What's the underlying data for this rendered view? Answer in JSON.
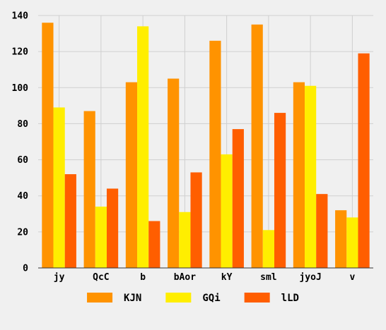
{
  "chart_data": {
    "type": "bar",
    "categories": [
      "jy",
      "QcC",
      "b",
      "bAor",
      "kY",
      "sml",
      "jyoJ",
      "v"
    ],
    "series": [
      {
        "name": "KJN",
        "color": "#ff9300",
        "values": [
          136,
          87,
          103,
          105,
          126,
          135,
          103,
          32
        ]
      },
      {
        "name": "GQi",
        "color": "#ffee00",
        "values": [
          89,
          34,
          134,
          31,
          63,
          21,
          101,
          28
        ]
      },
      {
        "name": "lLD",
        "color": "#ff5e00",
        "values": [
          52,
          44,
          26,
          53,
          77,
          86,
          41,
          119
        ]
      }
    ],
    "ylim": [
      0,
      140
    ],
    "yticks": [
      0,
      20,
      40,
      60,
      80,
      100,
      120,
      140
    ],
    "grid": true,
    "legend_position": "bottom",
    "background": "#f0f0f0",
    "grid_color": "#cfcfcf",
    "axis_color": "#333333"
  }
}
